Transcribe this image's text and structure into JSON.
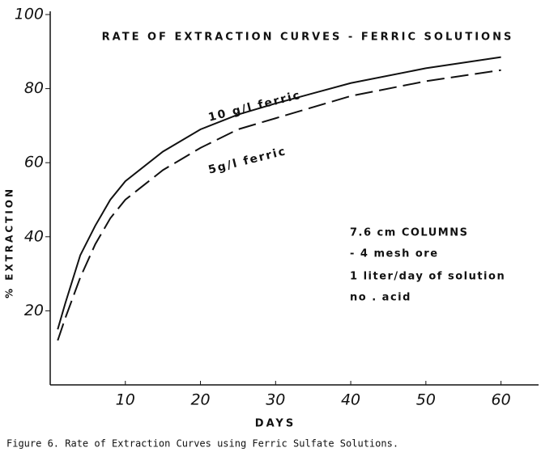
{
  "chart_data": {
    "type": "line",
    "title": "RATE OF EXTRACTION CURVES - FERRIC SOLUTIONS",
    "x_label": "DAYS",
    "y_label": "% EXTRACTION",
    "x": [
      1,
      2,
      4,
      6,
      8,
      10,
      15,
      20,
      25,
      30,
      40,
      50,
      60
    ],
    "series": [
      {
        "name": "10 g/l ferric",
        "color": "#111111",
        "dash": false,
        "values": [
          15,
          22,
          35,
          43,
          50,
          55,
          63,
          69,
          73,
          76,
          81.5,
          85.5,
          88.5
        ]
      },
      {
        "name": "5g/l ferric",
        "color": "#111111",
        "dash": true,
        "values": [
          12,
          18,
          29,
          38,
          45,
          50,
          58,
          64,
          69,
          72,
          78,
          82,
          85
        ]
      }
    ],
    "xlim": [
      0,
      65
    ],
    "xticks": [
      10,
      20,
      30,
      40,
      50,
      60
    ],
    "ylim": [
      0,
      100
    ],
    "yticks": [
      20,
      40,
      60,
      80,
      100
    ],
    "notes": [
      "7.6 cm COLUMNS",
      "- 4 mesh ore",
      "1 liter/day of solution",
      "no . acid"
    ],
    "caption": "Figure 6.  Rate of Extraction Curves using Ferric Sulfate Solutions."
  }
}
